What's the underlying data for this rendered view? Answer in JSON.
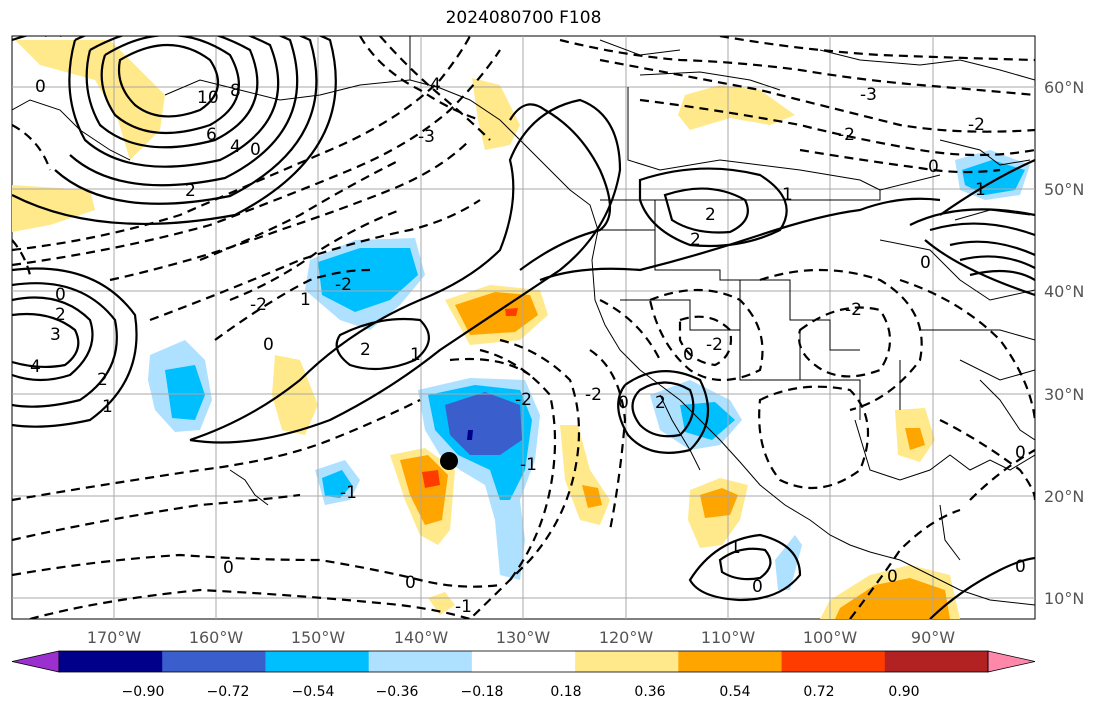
{
  "title": "2024080700 F108",
  "map": {
    "lon_labels": [
      "170°W",
      "160°W",
      "150°W",
      "140°W",
      "130°W",
      "120°W",
      "110°W",
      "100°W",
      "90°W"
    ],
    "lat_labels": [
      "60°N",
      "50°N",
      "40°N",
      "30°N",
      "20°N",
      "10°N"
    ],
    "contour_labels": [
      "0",
      "1",
      "2",
      "3",
      "4",
      "-1",
      "-2",
      "-3",
      "10",
      "8",
      "6"
    ],
    "storm_marker": "black-dot"
  },
  "colorbar": {
    "tick_labels": [
      "−0.90",
      "−0.72",
      "−0.54",
      "−0.36",
      "−0.18",
      "0.18",
      "0.36",
      "0.54",
      "0.72",
      "0.90"
    ],
    "colors": [
      "#9b30d0",
      "#00008b",
      "#3a5fcd",
      "#00bfff",
      "#aee0ff",
      "#ffffff",
      "#ffe98a",
      "#ffa500",
      "#ff3c00",
      "#b22222",
      "#ff88aa"
    ]
  }
}
